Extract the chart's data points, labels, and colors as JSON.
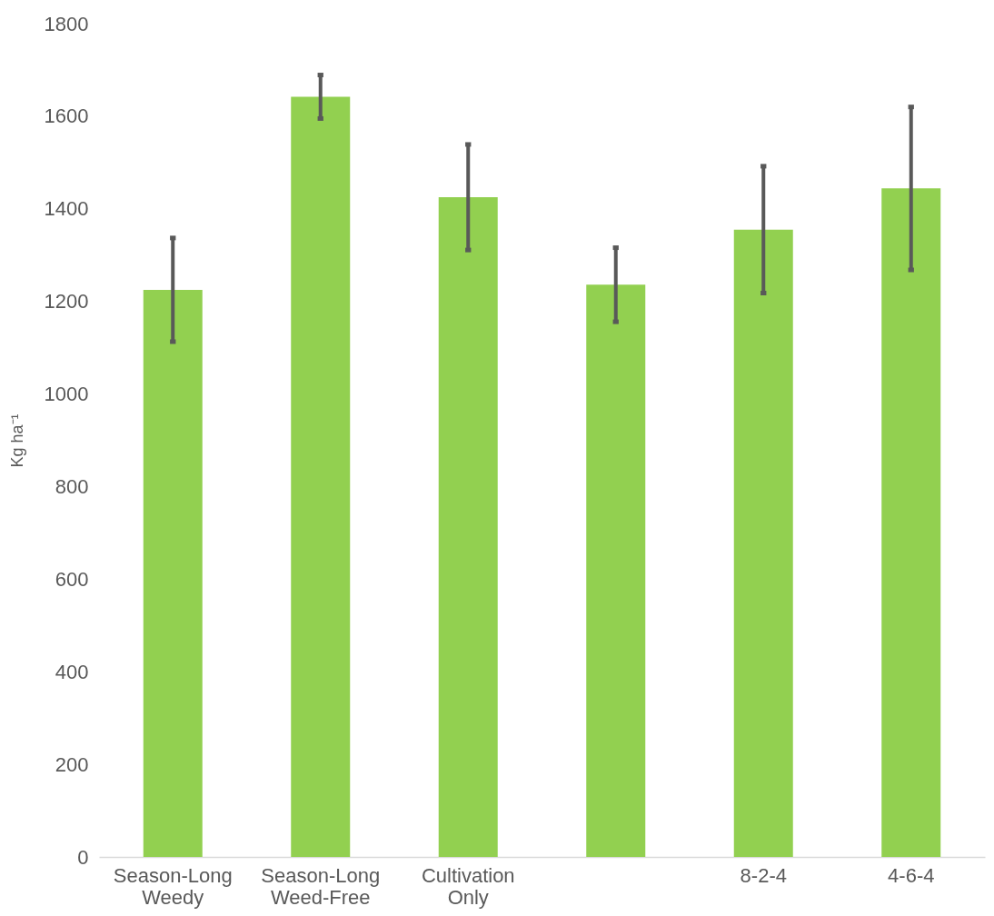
{
  "chart_data": {
    "type": "bar",
    "ylabel": "Kg ha⁻¹",
    "categories": [
      "Season-Long Weedy",
      "Season-Long Weed-Free",
      "Cultivation Only",
      null,
      "8-2-4",
      "4-6-4"
    ],
    "series": [
      {
        "color": "#92d050",
        "values": [
          1225,
          1642,
          1425,
          1236,
          1355,
          1444
        ],
        "errors": [
          112,
          47,
          114,
          80,
          137,
          176
        ]
      }
    ],
    "ylim": [
      0,
      1800
    ],
    "yticks": [
      0,
      200,
      400,
      600,
      800,
      1000,
      1200,
      1400,
      1600,
      1800
    ]
  }
}
